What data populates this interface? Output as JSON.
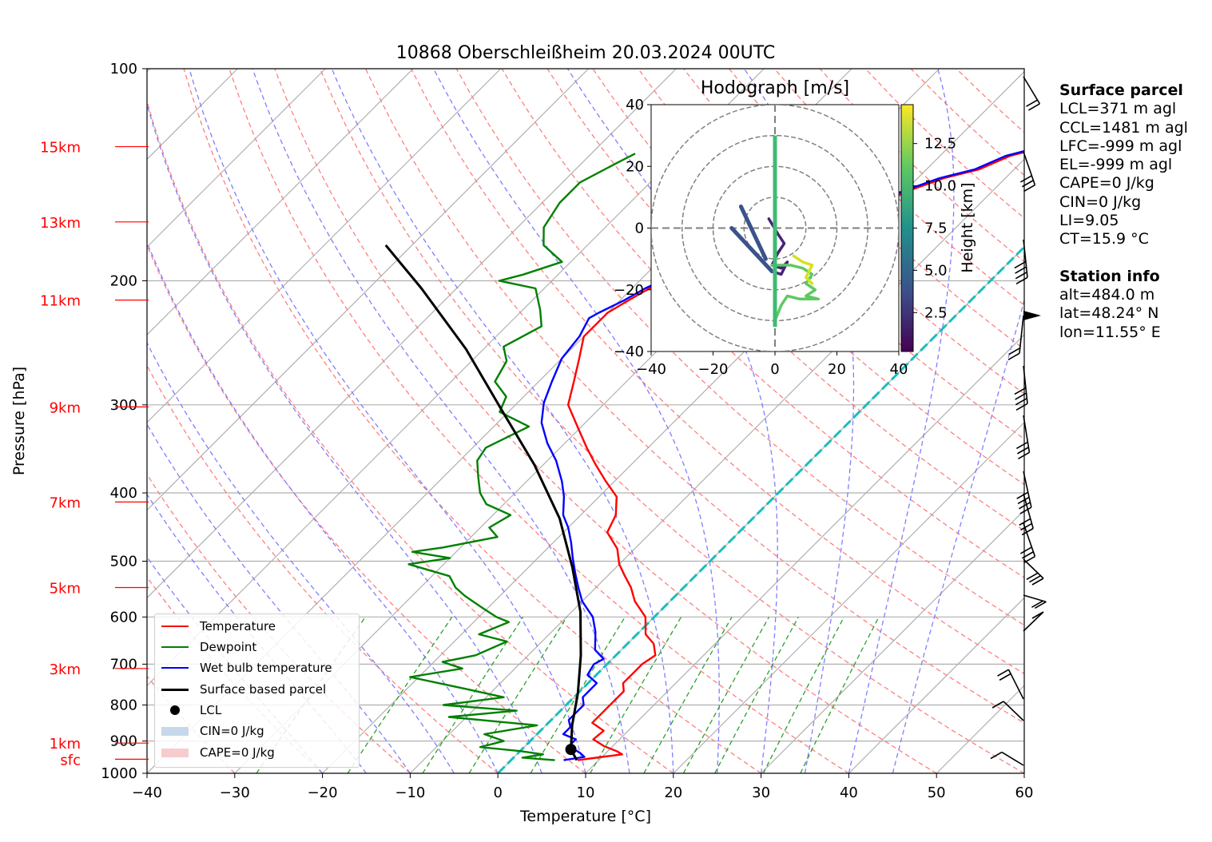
{
  "chart_data": [
    {
      "type": "line",
      "title": "10868 Oberschleißheim 20.03.2024 00UTC",
      "xlabel": "Temperature [°C]",
      "ylabel": "Pressure [hPa]",
      "xlim": [
        -40,
        60
      ],
      "ylim": [
        1000,
        100
      ],
      "yscale": "log",
      "skew": "skew-T log-p",
      "x_ticks": [
        "−40",
        "−30",
        "−20",
        "−10",
        "0",
        "10",
        "20",
        "30",
        "40",
        "50",
        "60"
      ],
      "y_ticks": [
        "100",
        "200",
        "300",
        "400",
        "500",
        "600",
        "700",
        "800",
        "900",
        "1000"
      ],
      "height_labels": [
        {
          "label": "15km",
          "p": 129
        },
        {
          "label": "13km",
          "p": 165
        },
        {
          "label": "11km",
          "p": 213
        },
        {
          "label": "9km",
          "p": 302
        },
        {
          "label": "7km",
          "p": 412
        },
        {
          "label": "5km",
          "p": 545
        },
        {
          "label": "3km",
          "p": 710
        },
        {
          "label": "1km",
          "p": 906
        },
        {
          "label": "sfc",
          "p": 955
        }
      ],
      "series": [
        {
          "name": "Temperature",
          "color": "#ff0000",
          "points": [
            [
              7.6,
              958
            ],
            [
              10,
              948
            ],
            [
              12,
              940
            ],
            [
              11,
              930
            ],
            [
              9,
              915
            ],
            [
              7,
              895
            ],
            [
              7.2,
              870
            ],
            [
              5,
              848
            ],
            [
              5,
              800
            ],
            [
              5,
              765
            ],
            [
              4,
              745
            ],
            [
              4,
              720
            ],
            [
              4,
              700
            ],
            [
              4.5,
              680
            ],
            [
              3,
              655
            ],
            [
              1,
              635
            ],
            [
              -1,
              600
            ],
            [
              -4,
              570
            ],
            [
              -6,
              545
            ],
            [
              -8,
              525
            ],
            [
              -10,
              505
            ],
            [
              -12,
              480
            ],
            [
              -15,
              455
            ],
            [
              -16,
              430
            ],
            [
              -18,
              405
            ],
            [
              -21,
              385
            ],
            [
              -24,
              365
            ],
            [
              -27,
              345
            ],
            [
              -30,
              325
            ],
            [
              -34,
              300
            ],
            [
              -36,
              278
            ],
            [
              -38,
              258
            ],
            [
              -40,
              240
            ],
            [
              -40,
              226
            ],
            [
              -40,
              222
            ],
            [
              -39,
              213
            ],
            [
              -38,
              205
            ],
            [
              -37,
              200
            ],
            [
              -35,
              188
            ],
            [
              -31,
              178
            ],
            [
              -27,
              168
            ],
            [
              -22,
              160
            ],
            [
              -20,
              150
            ],
            [
              -17,
              143
            ],
            [
              -14,
              139
            ],
            [
              -12,
              133
            ],
            [
              -9,
              129
            ]
          ]
        },
        {
          "name": "Dewpoint",
          "color": "#008000",
          "points": [
            [
              5,
              958
            ],
            [
              1,
              950
            ],
            [
              3,
              940
            ],
            [
              0,
              930
            ],
            [
              -5,
              918
            ],
            [
              -3,
              900
            ],
            [
              -6,
              880
            ],
            [
              -1,
              855
            ],
            [
              -12,
              832
            ],
            [
              -5,
              815
            ],
            [
              -14,
              800
            ],
            [
              -8,
              780
            ],
            [
              -13,
              760
            ],
            [
              -17,
              745
            ],
            [
              -21,
              730
            ],
            [
              -16,
              710
            ],
            [
              -19,
              695
            ],
            [
              -16,
              680
            ],
            [
              -14,
              650
            ],
            [
              -18,
              635
            ],
            [
              -16,
              610
            ],
            [
              -18,
              600
            ],
            [
              -21,
              580
            ],
            [
              -24,
              560
            ],
            [
              -26,
              545
            ],
            [
              -28,
              525
            ],
            [
              -34,
              505
            ],
            [
              -30,
              495
            ],
            [
              -35,
              485
            ],
            [
              -32,
              478
            ],
            [
              -27,
              462
            ],
            [
              -29,
              448
            ],
            [
              -28,
              430
            ],
            [
              -32,
              415
            ],
            [
              -34,
              400
            ],
            [
              -36,
              380
            ],
            [
              -38,
              360
            ],
            [
              -38.5,
              345
            ],
            [
              -36,
              322
            ],
            [
              -41,
              307
            ],
            [
              -42,
              292
            ],
            [
              -45,
              278
            ],
            [
              -46,
              260
            ],
            [
              -48,
              248
            ],
            [
              -46,
              232
            ],
            [
              -48,
              220
            ],
            [
              -51,
              205
            ],
            [
              -56,
              200
            ],
            [
              -54,
              196
            ],
            [
              -51,
              188
            ],
            [
              -55,
              178
            ],
            [
              -57,
              168
            ],
            [
              -58,
              155
            ],
            [
              -58,
              145
            ],
            [
              -56,
              136
            ],
            [
              -55,
              132
            ]
          ]
        },
        {
          "name": "Wet bulb temperature",
          "color": "#0000ff",
          "points": [
            [
              6,
              958
            ],
            [
              8,
              948
            ],
            [
              7,
              935
            ],
            [
              5,
              915
            ],
            [
              5,
              895
            ],
            [
              3,
              880
            ],
            [
              3,
              860
            ],
            [
              2,
              840
            ],
            [
              2,
              800
            ],
            [
              1,
              780
            ],
            [
              1,
              765
            ],
            [
              1,
              745
            ],
            [
              -1,
              725
            ],
            [
              -1.5,
              700
            ],
            [
              -1,
              688
            ],
            [
              -3,
              668
            ],
            [
              -5,
              630
            ],
            [
              -7,
              600
            ],
            [
              -10,
              570
            ],
            [
              -12,
              545
            ],
            [
              -14,
              520
            ],
            [
              -16,
              495
            ],
            [
              -18,
              470
            ],
            [
              -20,
              448
            ],
            [
              -22,
              430
            ],
            [
              -24,
              405
            ],
            [
              -26,
              385
            ],
            [
              -29,
              360
            ],
            [
              -32,
              340
            ],
            [
              -35,
              318
            ],
            [
              -37,
              298
            ],
            [
              -38.5,
              278
            ],
            [
              -40,
              258
            ],
            [
              -40.5,
              240
            ],
            [
              -41.5,
              226
            ],
            [
              -41,
              222
            ],
            [
              -39.5,
              213
            ],
            [
              -38.5,
              205
            ],
            [
              -37.5,
              200
            ],
            [
              -35.5,
              188
            ],
            [
              -31.5,
              178
            ],
            [
              -27.5,
              168
            ],
            [
              -22.5,
              160
            ],
            [
              -20.5,
              150
            ],
            [
              -17.5,
              143
            ],
            [
              -14.5,
              139
            ],
            [
              -12.5,
              133
            ],
            [
              -9.5,
              129
            ]
          ]
        },
        {
          "name": "Surface based parcel",
          "color": "#000000",
          "points": [
            [
              7.5,
              958
            ],
            [
              5.6,
              925
            ],
            [
              3,
              855
            ],
            [
              0,
              770
            ],
            [
              -4,
              680
            ],
            [
              -9,
              590
            ],
            [
              -15,
              510
            ],
            [
              -22,
              435
            ],
            [
              -31,
              365
            ],
            [
              -41,
              305
            ],
            [
              -52,
              250
            ],
            [
              -64,
              205
            ],
            [
              -73,
              178
            ]
          ]
        }
      ],
      "lcl": {
        "name": "LCL",
        "t": 5.6,
        "p": 925
      },
      "legend": [
        "Temperature",
        "Dewpoint",
        "Wet bulb temperature",
        "Surface based parcel",
        "LCL",
        "CIN=0 J/kg",
        "CAPE=0 J/kg"
      ],
      "legend_position": "lower-left"
    },
    {
      "type": "scatter",
      "title": "Hodograph [m/s]",
      "xlim": [
        -40,
        40
      ],
      "ylim": [
        -40,
        40
      ],
      "ticks": [
        "−40",
        "−20",
        "0",
        "20",
        "40"
      ],
      "colorbar_label": "Height [km]",
      "colorbar_ticks": [
        "2.5",
        "5.0",
        "7.5",
        "10.0",
        "12.5"
      ]
    }
  ],
  "info": {
    "surface_header": "Surface parcel",
    "surface_lines": [
      "LCL=371 m agl",
      "CCL=1481 m agl",
      "LFC=-999 m agl",
      "EL=-999 m agl",
      "CAPE=0 J/kg",
      "CIN=0 J/kg",
      "LI=9.05",
      "CT=15.9 °C"
    ],
    "station_header": "Station info",
    "station_lines": [
      "alt=484.0 m",
      "lat=48.24° N",
      "lon=11.55° E"
    ]
  },
  "colors": {
    "temperature": "#ff0000",
    "dewpoint": "#008000",
    "wetbulb": "#0000ff",
    "parcel": "#000000",
    "dry_adiabat": "#ff7f7f",
    "moist_adiabat": "#7f7fff",
    "mixing_ratio": "#2ca02c",
    "freezing_line": "#17bfbf"
  }
}
